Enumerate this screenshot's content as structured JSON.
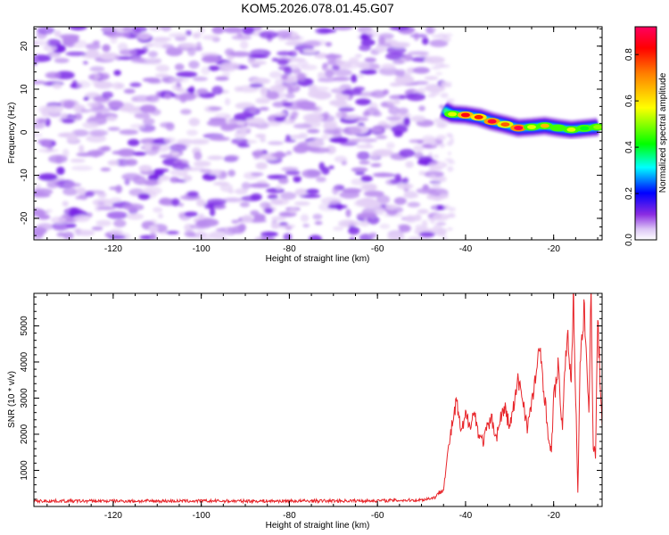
{
  "colors": {
    "background": "#ffffff",
    "axis": "#000000",
    "snr_line": "#e8262b",
    "blob_light": "#e4d0f6",
    "blob_mid": "#b98bee",
    "blob_dark": "#7a28e6"
  },
  "chart_data": [
    {
      "type": "heatmap",
      "title": "KOM5.2026.078.01.45.G07",
      "xlabel": "Height of straight line (km)",
      "ylabel": "Frequency (Hz)",
      "xlim": [
        -138,
        -9
      ],
      "ylim": [
        -25,
        24.5
      ],
      "xticks": [
        -120,
        -100,
        -80,
        -60,
        -40,
        -20
      ],
      "yticks": [
        -20,
        -10,
        0,
        10,
        20
      ],
      "noise_region_x": [
        -138,
        -45
      ],
      "noise_level_range": [
        0.05,
        0.2
      ],
      "signal_track": [
        {
          "x": -45,
          "f": 5.2,
          "amp": 0.25
        },
        {
          "x": -43,
          "f": 4.2,
          "amp": 0.55
        },
        {
          "x": -40,
          "f": 4.0,
          "amp": 0.85
        },
        {
          "x": -37,
          "f": 3.5,
          "amp": 0.8
        },
        {
          "x": -34,
          "f": 2.5,
          "amp": 0.88
        },
        {
          "x": -31,
          "f": 1.8,
          "amp": 0.75
        },
        {
          "x": -28,
          "f": 1.0,
          "amp": 0.9
        },
        {
          "x": -25,
          "f": 1.2,
          "amp": 0.55
        },
        {
          "x": -22,
          "f": 1.5,
          "amp": 0.65
        },
        {
          "x": -19,
          "f": 1.0,
          "amp": 0.45
        },
        {
          "x": -16,
          "f": 0.6,
          "amp": 0.55
        },
        {
          "x": -13,
          "f": 0.9,
          "amp": 0.4
        },
        {
          "x": -10,
          "f": 1.2,
          "amp": 0.5
        }
      ],
      "colorbar": {
        "label": "Normalized spectral amplitude",
        "ticks": [
          0.0,
          0.2,
          0.4,
          0.6,
          0.8
        ],
        "tick_labels": [
          "0.0",
          "0.2",
          "0.4",
          "0.6",
          "0.8"
        ],
        "range": [
          0,
          0.92
        ]
      }
    },
    {
      "type": "line",
      "xlabel": "Height of straight line (km)",
      "ylabel": "SNR (10 * v/v)",
      "xlim": [
        -138,
        -9
      ],
      "ylim": [
        0,
        5900
      ],
      "xticks": [
        -120,
        -100,
        -80,
        -60,
        -40,
        -20
      ],
      "yticks": [
        1000,
        2000,
        3000,
        4000,
        5000
      ],
      "series": [
        {
          "name": "SNR",
          "x": [
            -138,
            -120,
            -100,
            -80,
            -60,
            -50,
            -47,
            -45,
            -44,
            -43,
            -42,
            -41,
            -40,
            -39,
            -38,
            -37,
            -36,
            -35,
            -34,
            -33,
            -32,
            -31,
            -30,
            -29,
            -28,
            -27,
            -26,
            -25,
            -24,
            -23,
            -22,
            -21,
            -20.5,
            -20,
            -19,
            -18,
            -17,
            -16,
            -15.5,
            -15,
            -14.5,
            -14,
            -13,
            -12,
            -11.5,
            -11,
            -10.5,
            -10,
            -9
          ],
          "values": [
            150,
            150,
            150,
            150,
            160,
            180,
            250,
            500,
            1500,
            2300,
            2900,
            2000,
            2500,
            2300,
            2600,
            2000,
            1800,
            2200,
            2400,
            1900,
            2500,
            2700,
            2200,
            2800,
            3500,
            3000,
            2200,
            2800,
            3700,
            4300,
            3000,
            1700,
            1500,
            3000,
            3800,
            2200,
            4800,
            3600,
            5950,
            3000,
            450,
            3800,
            5500,
            2500,
            5900,
            1700,
            1400,
            5200,
            2200
          ]
        }
      ]
    }
  ]
}
